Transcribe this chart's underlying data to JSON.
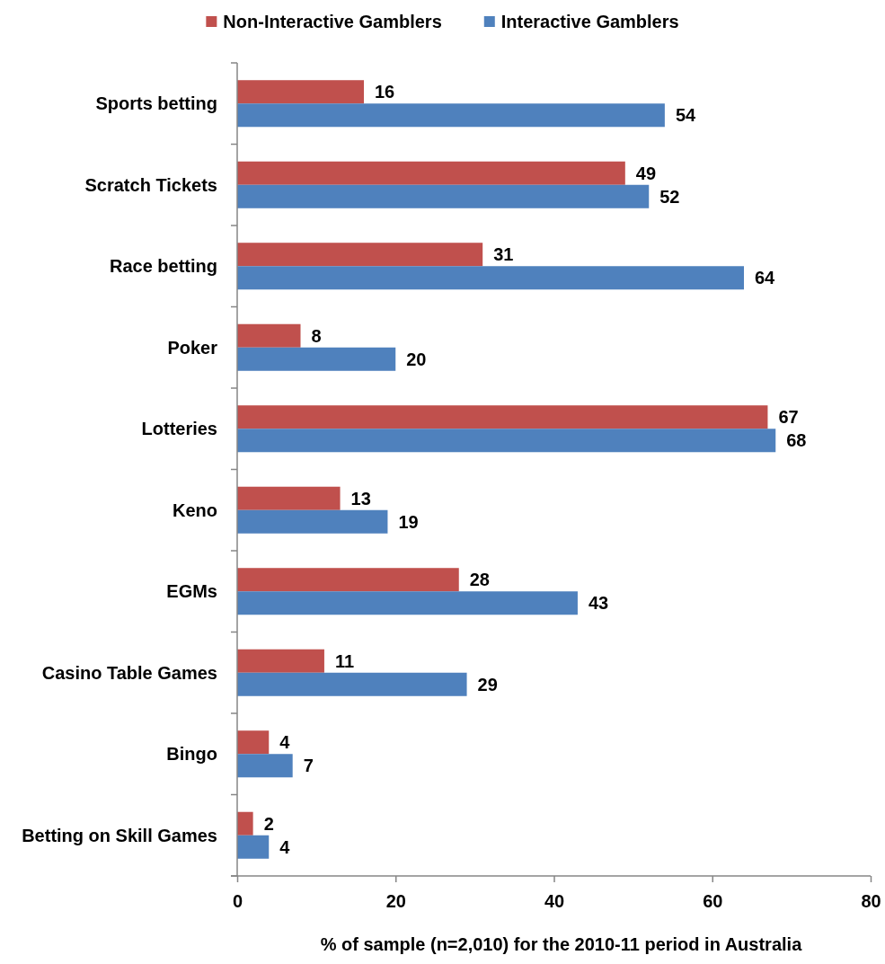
{
  "chart_data": {
    "type": "bar",
    "orientation": "horizontal",
    "xlabel": "% of sample (n=2,010) for the 2010-11 period in Australia",
    "categories": [
      "Sports betting",
      "Scratch Tickets",
      "Race betting",
      "Poker",
      "Lotteries",
      "Keno",
      "EGMs",
      "Casino Table Games",
      "Bingo",
      "Betting on Skill Games"
    ],
    "series": [
      {
        "name": "Non-Interactive Gamblers",
        "color": "#c0504d",
        "values": [
          16,
          49,
          31,
          8,
          67,
          13,
          28,
          11,
          4,
          2
        ]
      },
      {
        "name": "Interactive Gamblers",
        "color": "#4f81bd",
        "values": [
          54,
          52,
          64,
          20,
          68,
          19,
          43,
          29,
          7,
          4
        ]
      }
    ],
    "xlim": [
      0,
      80
    ],
    "xticks": [
      0,
      20,
      40,
      60,
      80
    ],
    "legend": "top",
    "data_labels": true
  }
}
